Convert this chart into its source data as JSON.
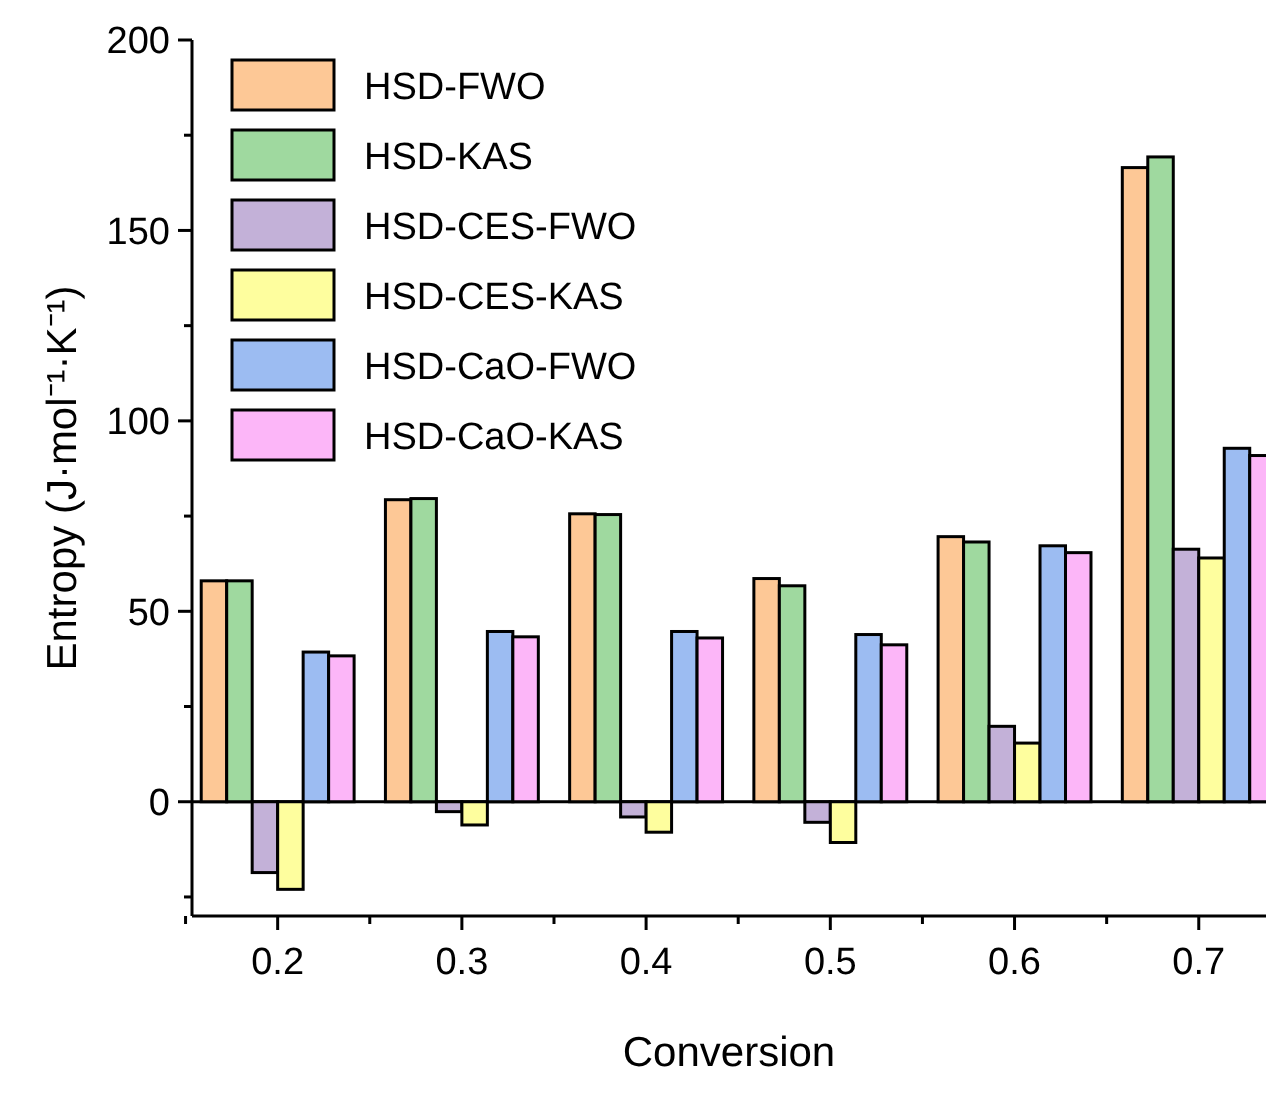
{
  "chart_data": {
    "type": "bar",
    "xlabel": "Conversion",
    "ylabel": "Entropy (J·mol⁻¹·K⁻¹)",
    "categories": [
      "0.2",
      "0.3",
      "0.4",
      "0.5",
      "0.6",
      "0.7"
    ],
    "series": [
      {
        "name": "HSD-FWO",
        "color": "#fdc896",
        "values": [
          58,
          79.3,
          75.6,
          58.6,
          69.6,
          166.5
        ]
      },
      {
        "name": "HSD-KAS",
        "color": "#9fd99f",
        "values": [
          58,
          79.6,
          75.4,
          56.7,
          68.2,
          169.3
        ]
      },
      {
        "name": "HSD-CES-FWO",
        "color": "#c3b1d8",
        "values": [
          -18.6,
          -2.6,
          -4,
          -5.4,
          19.8,
          66.3
        ]
      },
      {
        "name": "HSD-CES-KAS",
        "color": "#fefe9e",
        "values": [
          -23,
          -6.1,
          -8,
          -10.7,
          15.4,
          64
        ]
      },
      {
        "name": "HSD-CaO-FWO",
        "color": "#9cbcf2",
        "values": [
          39.3,
          44.7,
          44.7,
          43.9,
          67.2,
          92.8
        ]
      },
      {
        "name": "HSD-CaO-KAS",
        "color": "#fcb6f8",
        "values": [
          38.3,
          43.3,
          43,
          41.2,
          65.4,
          90.9
        ]
      }
    ],
    "ylim": [
      -30,
      200
    ],
    "yticks": [
      {
        "value": -25,
        "label": null
      },
      0,
      {
        "value": 25,
        "label": null
      },
      50,
      {
        "value": 75,
        "label": null
      },
      100,
      {
        "value": 125,
        "label": null
      },
      150,
      {
        "value": 175,
        "label": null
      },
      200
    ],
    "ref_lines": [
      {
        "axis": "y",
        "value": 0
      }
    ],
    "legend": "top left"
  }
}
